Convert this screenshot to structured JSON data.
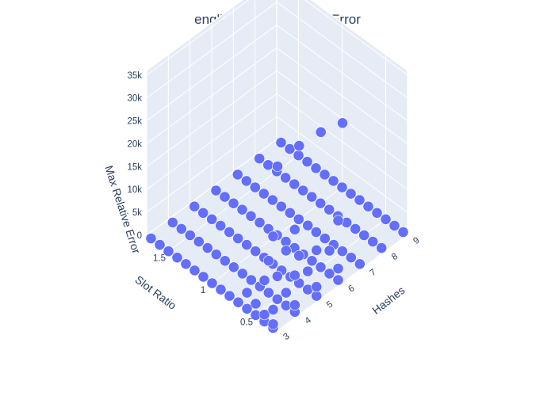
{
  "chart_data": {
    "type": "scatter3d",
    "title": "english - Max Relative Error",
    "x_axis": {
      "label": "Hashes",
      "range": [
        3,
        9
      ],
      "ticks": [
        "3",
        "4",
        "5",
        "6",
        "7",
        "8",
        "9"
      ]
    },
    "y_axis": {
      "label": "Slot Ratio",
      "range": [
        0.25,
        1.75
      ],
      "ticks": [
        "0.5",
        "1",
        "1.5"
      ]
    },
    "z_axis": {
      "label": "Max Relative Error",
      "range": [
        0,
        36000
      ],
      "ticks": [
        "0",
        "5k",
        "10k",
        "15k",
        "20k",
        "25k",
        "30k",
        "35k"
      ]
    },
    "grid": true,
    "marker_color": "#636efa",
    "background_color": "#e5ecf6",
    "grid_color": "#ffffff",
    "points": [
      {
        "x": 3,
        "y": 0.3,
        "z": 0
      },
      {
        "x": 3,
        "y": 0.4,
        "z": 0
      },
      {
        "x": 3,
        "y": 0.5,
        "z": 0
      },
      {
        "x": 3,
        "y": 0.6,
        "z": 0
      },
      {
        "x": 3,
        "y": 0.7,
        "z": 0
      },
      {
        "x": 3,
        "y": 0.8,
        "z": 0
      },
      {
        "x": 3,
        "y": 0.9,
        "z": 0
      },
      {
        "x": 3,
        "y": 1.0,
        "z": 0
      },
      {
        "x": 3,
        "y": 1.1,
        "z": 0
      },
      {
        "x": 3,
        "y": 1.2,
        "z": 0
      },
      {
        "x": 3,
        "y": 1.3,
        "z": 0
      },
      {
        "x": 3,
        "y": 1.4,
        "z": 0
      },
      {
        "x": 3,
        "y": 1.5,
        "z": 0
      },
      {
        "x": 3,
        "y": 1.6,
        "z": 0
      },
      {
        "x": 3,
        "y": 1.7,
        "z": 0
      },
      {
        "x": 4,
        "y": 0.3,
        "z": 0
      },
      {
        "x": 4,
        "y": 0.4,
        "z": 0
      },
      {
        "x": 4,
        "y": 0.5,
        "z": 0
      },
      {
        "x": 4,
        "y": 0.6,
        "z": 0
      },
      {
        "x": 4,
        "y": 0.7,
        "z": 0
      },
      {
        "x": 4,
        "y": 0.8,
        "z": 0
      },
      {
        "x": 4,
        "y": 0.9,
        "z": 0
      },
      {
        "x": 4,
        "y": 1.0,
        "z": 0
      },
      {
        "x": 4,
        "y": 1.1,
        "z": 0
      },
      {
        "x": 4,
        "y": 1.2,
        "z": 0
      },
      {
        "x": 4,
        "y": 1.3,
        "z": 0
      },
      {
        "x": 4,
        "y": 1.4,
        "z": 0
      },
      {
        "x": 4,
        "y": 1.5,
        "z": 0
      },
      {
        "x": 4,
        "y": 1.6,
        "z": 0
      },
      {
        "x": 4,
        "y": 1.7,
        "z": 0
      },
      {
        "x": 5,
        "y": 0.3,
        "z": 0
      },
      {
        "x": 5,
        "y": 0.4,
        "z": 0
      },
      {
        "x": 5,
        "y": 0.5,
        "z": 0
      },
      {
        "x": 5,
        "y": 0.6,
        "z": 0
      },
      {
        "x": 5,
        "y": 0.7,
        "z": 0
      },
      {
        "x": 5,
        "y": 0.8,
        "z": 0
      },
      {
        "x": 5,
        "y": 0.9,
        "z": 0
      },
      {
        "x": 5,
        "y": 1.0,
        "z": 0
      },
      {
        "x": 5,
        "y": 1.1,
        "z": 0
      },
      {
        "x": 5,
        "y": 1.2,
        "z": 0
      },
      {
        "x": 5,
        "y": 1.3,
        "z": 0
      },
      {
        "x": 5,
        "y": 1.4,
        "z": 0
      },
      {
        "x": 5,
        "y": 1.5,
        "z": 0
      },
      {
        "x": 5,
        "y": 1.6,
        "z": 0
      },
      {
        "x": 5,
        "y": 1.7,
        "z": 0
      },
      {
        "x": 6,
        "y": 0.3,
        "z": 0
      },
      {
        "x": 6,
        "y": 0.4,
        "z": 0
      },
      {
        "x": 6,
        "y": 0.5,
        "z": 0
      },
      {
        "x": 6,
        "y": 0.6,
        "z": 0
      },
      {
        "x": 6,
        "y": 0.7,
        "z": 0
      },
      {
        "x": 6,
        "y": 0.8,
        "z": 0
      },
      {
        "x": 6,
        "y": 0.9,
        "z": 0
      },
      {
        "x": 6,
        "y": 1.0,
        "z": 0
      },
      {
        "x": 6,
        "y": 1.1,
        "z": 0
      },
      {
        "x": 6,
        "y": 1.2,
        "z": 0
      },
      {
        "x": 6,
        "y": 1.3,
        "z": 0
      },
      {
        "x": 6,
        "y": 1.4,
        "z": 0
      },
      {
        "x": 6,
        "y": 1.5,
        "z": 0
      },
      {
        "x": 6,
        "y": 1.6,
        "z": 0
      },
      {
        "x": 6,
        "y": 1.7,
        "z": 0
      },
      {
        "x": 7,
        "y": 0.3,
        "z": 0
      },
      {
        "x": 7,
        "y": 0.4,
        "z": 0
      },
      {
        "x": 7,
        "y": 0.5,
        "z": 0
      },
      {
        "x": 7,
        "y": 0.6,
        "z": 0
      },
      {
        "x": 7,
        "y": 0.7,
        "z": 0
      },
      {
        "x": 7,
        "y": 0.8,
        "z": 0
      },
      {
        "x": 7,
        "y": 0.9,
        "z": 0
      },
      {
        "x": 7,
        "y": 1.0,
        "z": 0
      },
      {
        "x": 7,
        "y": 1.1,
        "z": 0
      },
      {
        "x": 7,
        "y": 1.2,
        "z": 0
      },
      {
        "x": 7,
        "y": 1.3,
        "z": 0
      },
      {
        "x": 7,
        "y": 1.4,
        "z": 0
      },
      {
        "x": 7,
        "y": 1.5,
        "z": 0
      },
      {
        "x": 7,
        "y": 1.6,
        "z": 0
      },
      {
        "x": 7,
        "y": 1.7,
        "z": 0
      },
      {
        "x": 8,
        "y": 0.3,
        "z": 0
      },
      {
        "x": 8,
        "y": 0.4,
        "z": 0
      },
      {
        "x": 8,
        "y": 0.5,
        "z": 0
      },
      {
        "x": 8,
        "y": 0.6,
        "z": 0
      },
      {
        "x": 8,
        "y": 0.7,
        "z": 0
      },
      {
        "x": 8,
        "y": 0.8,
        "z": 0
      },
      {
        "x": 8,
        "y": 0.9,
        "z": 0
      },
      {
        "x": 8,
        "y": 1.0,
        "z": 0
      },
      {
        "x": 8,
        "y": 1.1,
        "z": 0
      },
      {
        "x": 8,
        "y": 1.2,
        "z": 0
      },
      {
        "x": 8,
        "y": 1.3,
        "z": 0
      },
      {
        "x": 8,
        "y": 1.4,
        "z": 0
      },
      {
        "x": 8,
        "y": 1.5,
        "z": 0
      },
      {
        "x": 8,
        "y": 1.6,
        "z": 0
      },
      {
        "x": 8,
        "y": 1.7,
        "z": 0
      },
      {
        "x": 9,
        "y": 0.3,
        "z": 0
      },
      {
        "x": 9,
        "y": 0.4,
        "z": 0
      },
      {
        "x": 9,
        "y": 0.5,
        "z": 0
      },
      {
        "x": 9,
        "y": 0.6,
        "z": 0
      },
      {
        "x": 9,
        "y": 0.7,
        "z": 0
      },
      {
        "x": 9,
        "y": 0.8,
        "z": 0
      },
      {
        "x": 9,
        "y": 0.9,
        "z": 0
      },
      {
        "x": 9,
        "y": 1.0,
        "z": 0
      },
      {
        "x": 9,
        "y": 1.1,
        "z": 0
      },
      {
        "x": 9,
        "y": 1.2,
        "z": 0
      },
      {
        "x": 9,
        "y": 1.3,
        "z": 0
      },
      {
        "x": 9,
        "y": 1.4,
        "z": 0
      },
      {
        "x": 9,
        "y": 1.5,
        "z": 0
      },
      {
        "x": 9,
        "y": 1.6,
        "z": 0
      },
      {
        "x": 9,
        "y": 1.7,
        "z": 0
      },
      {
        "x": 3,
        "y": 0.3,
        "z": 800
      },
      {
        "x": 3,
        "y": 0.4,
        "z": 1500
      },
      {
        "x": 3,
        "y": 0.5,
        "z": 2500
      },
      {
        "x": 3,
        "y": 0.6,
        "z": 3500
      },
      {
        "x": 4,
        "y": 0.3,
        "z": 1500
      },
      {
        "x": 4,
        "y": 0.4,
        "z": 2800
      },
      {
        "x": 4,
        "y": 0.5,
        "z": 5000
      },
      {
        "x": 4,
        "y": 0.6,
        "z": 7000
      },
      {
        "x": 5,
        "y": 0.3,
        "z": 2000
      },
      {
        "x": 5,
        "y": 0.4,
        "z": 4000
      },
      {
        "x": 5,
        "y": 0.5,
        "z": 6000
      },
      {
        "x": 6,
        "y": 0.3,
        "z": 2500
      },
      {
        "x": 6,
        "y": 0.4,
        "z": 5000
      },
      {
        "x": 3,
        "y": 0.3,
        "z": 4000
      },
      {
        "x": 3,
        "y": 0.4,
        "z": 9000
      },
      {
        "x": 4,
        "y": 0.3,
        "z": 8000
      },
      {
        "x": 4,
        "y": 0.4,
        "z": 12000
      },
      {
        "x": 5,
        "y": 0.3,
        "z": 10000
      },
      {
        "x": 5,
        "y": 0.4,
        "z": 14000
      },
      {
        "x": 6,
        "y": 0.3,
        "z": 13000
      },
      {
        "x": 3,
        "y": 0.3,
        "z": 20000
      },
      {
        "x": 4,
        "y": 0.3,
        "z": 18000
      },
      {
        "x": 3,
        "y": 0.25,
        "z": 36000
      },
      {
        "x": 4,
        "y": 0.25,
        "z": 37000
      },
      {
        "x": 5,
        "y": 0.25,
        "z": 36500
      },
      {
        "x": 6,
        "y": 0.25,
        "z": 35000
      }
    ]
  }
}
